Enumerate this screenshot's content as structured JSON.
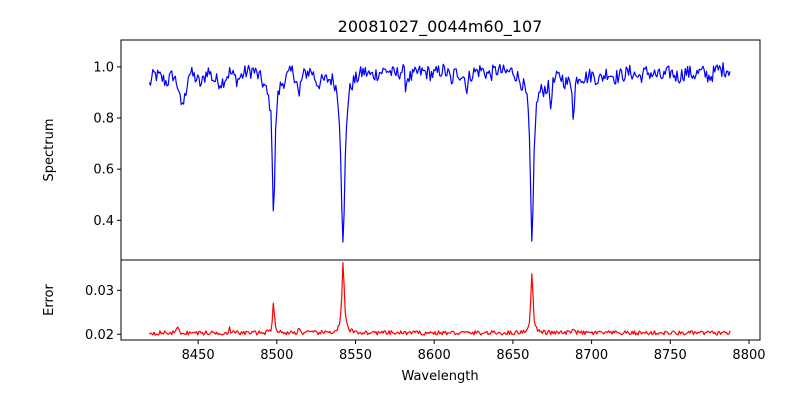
{
  "chart_data": [
    {
      "type": "line",
      "title": "20081027_0044m60_107",
      "xlabel": "",
      "ylabel": "Spectrum",
      "xlim": [
        8401,
        8807
      ],
      "ylim": [
        0.245,
        1.105
      ],
      "xticks": [],
      "yticks": [
        0.4,
        0.6,
        0.8,
        1.0
      ],
      "ytick_labels": [
        "0.4",
        "0.6",
        "0.8",
        "1.0"
      ],
      "grid": false,
      "series": [
        {
          "color": "#0000ff",
          "continuum": [
            [
              8419,
              0.93
            ],
            [
              8422,
              0.97
            ],
            [
              8426,
              0.96
            ],
            [
              8430,
              0.94
            ],
            [
              8434,
              0.97
            ],
            [
              8438,
              0.92
            ],
            [
              8441,
              0.86
            ],
            [
              8444,
              0.98
            ],
            [
              8448,
              0.96
            ],
            [
              8452,
              0.93
            ],
            [
              8456,
              0.99
            ],
            [
              8460,
              0.95
            ],
            [
              8465,
              0.94
            ],
            [
              8470,
              0.98
            ],
            [
              8475,
              0.95
            ],
            [
              8480,
              0.98
            ],
            [
              8485,
              0.99
            ],
            [
              8490,
              0.96
            ],
            [
              8494,
              0.92
            ],
            [
              8505,
              0.96
            ],
            [
              8510,
              0.99
            ],
            [
              8514,
              0.94
            ],
            [
              8518,
              0.98
            ],
            [
              8522,
              0.99
            ],
            [
              8526,
              0.94
            ],
            [
              8531,
              0.96
            ],
            [
              8536,
              0.98
            ],
            [
              8550,
              0.97
            ],
            [
              8555,
              0.99
            ],
            [
              8560,
              0.97
            ],
            [
              8565,
              0.98
            ],
            [
              8570,
              0.99
            ],
            [
              8575,
              0.97
            ],
            [
              8580,
              0.99
            ],
            [
              8585,
              0.96
            ],
            [
              8590,
              0.98
            ],
            [
              8595,
              0.98
            ],
            [
              8600,
              0.97
            ],
            [
              8605,
              0.99
            ],
            [
              8610,
              0.97
            ],
            [
              8615,
              0.98
            ],
            [
              8620,
              0.96
            ],
            [
              8625,
              0.98
            ],
            [
              8630,
              0.99
            ],
            [
              8635,
              0.97
            ],
            [
              8640,
              0.99
            ],
            [
              8645,
              0.98
            ],
            [
              8650,
              0.99
            ],
            [
              8655,
              0.96
            ],
            [
              8670,
              0.93
            ],
            [
              8675,
              0.95
            ],
            [
              8680,
              0.97
            ],
            [
              8684,
              0.94
            ],
            [
              8692,
              0.97
            ],
            [
              8696,
              0.96
            ],
            [
              8700,
              0.97
            ],
            [
              8705,
              0.95
            ],
            [
              8710,
              0.98
            ],
            [
              8715,
              0.96
            ],
            [
              8720,
              0.97
            ],
            [
              8725,
              0.98
            ],
            [
              8730,
              0.96
            ],
            [
              8735,
              0.98
            ],
            [
              8740,
              0.97
            ],
            [
              8745,
              0.96
            ],
            [
              8750,
              0.98
            ],
            [
              8755,
              0.96
            ],
            [
              8760,
              0.98
            ],
            [
              8765,
              0.97
            ],
            [
              8770,
              0.98
            ],
            [
              8775,
              0.96
            ],
            [
              8780,
              0.99
            ],
            [
              8788,
              0.99
            ]
          ],
          "noise": 0.03,
          "lines": [
            {
              "center": 8498.0,
              "depth": 0.51,
              "width": 1.0
            },
            {
              "center": 8542.1,
              "depth": 0.68,
              "width": 1.4
            },
            {
              "center": 8662.1,
              "depth": 0.66,
              "width": 1.2
            },
            {
              "center": 8688.6,
              "depth": 0.2,
              "width": 0.5
            },
            {
              "center": 8439.0,
              "depth": 0.08,
              "width": 0.5
            },
            {
              "center": 8514.0,
              "depth": 0.08,
              "width": 0.5
            },
            {
              "center": 8582.0,
              "depth": 0.06,
              "width": 0.5
            },
            {
              "center": 8611.0,
              "depth": 0.05,
              "width": 0.5
            },
            {
              "center": 8621.0,
              "depth": 0.07,
              "width": 0.5
            },
            {
              "center": 8674.0,
              "depth": 0.1,
              "width": 0.6
            }
          ]
        }
      ]
    },
    {
      "type": "line",
      "title": "",
      "xlabel": "Wavelength",
      "ylabel": "Error",
      "xlim": [
        8401,
        8807
      ],
      "ylim": [
        0.0187,
        0.0369
      ],
      "xticks": [
        8450,
        8500,
        8550,
        8600,
        8650,
        8700,
        8750,
        8800
      ],
      "xtick_labels": [
        "8450",
        "8500",
        "8550",
        "8600",
        "8650",
        "8700",
        "8750",
        "8800"
      ],
      "yticks": [
        0.02,
        0.03
      ],
      "ytick_labels": [
        "0.02",
        "0.03"
      ],
      "grid": false,
      "series": [
        {
          "color": "#ff0000",
          "baseline": 0.0203,
          "noise": 0.0005,
          "peaks": [
            {
              "center": 8498.0,
              "height": 0.0079,
              "width": 0.6
            },
            {
              "center": 8542.1,
              "height": 0.0158,
              "width": 0.9
            },
            {
              "center": 8662.1,
              "height": 0.0141,
              "width": 0.8
            },
            {
              "center": 8688.6,
              "height": 0.0018,
              "width": 0.5
            },
            {
              "center": 8437.0,
              "height": 0.0016,
              "width": 0.5
            },
            {
              "center": 8514.0,
              "height": 0.0013,
              "width": 0.5
            },
            {
              "center": 8470.0,
              "height": 0.001,
              "width": 0.5
            }
          ]
        }
      ]
    }
  ]
}
